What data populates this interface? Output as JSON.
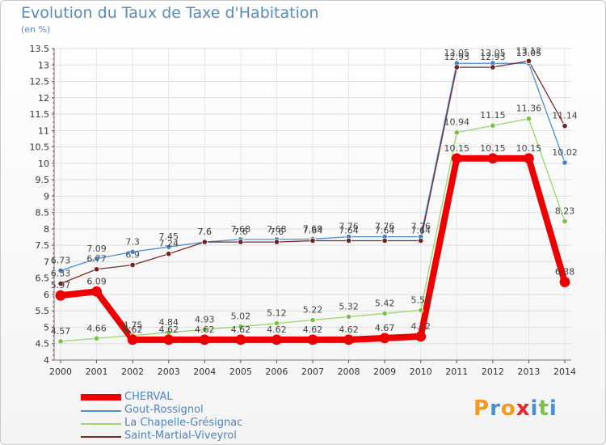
{
  "header": {
    "title": "Evolution du Taux de Taxe d'Habitation",
    "unit": "(en %)"
  },
  "logo": {
    "text": "Proxiti",
    "colors": [
      "#f39a1e",
      "#4a8fd0",
      "#f39a1e",
      "#e6282d",
      "#4a8fd0",
      "#7cc242",
      "#4a8fd0"
    ]
  },
  "chart_data": {
    "type": "line",
    "x": [
      "2000",
      "2001",
      "2002",
      "2003",
      "2004",
      "2005",
      "2006",
      "2007",
      "2008",
      "2009",
      "2010",
      "2011",
      "2012",
      "2013",
      "2014"
    ],
    "ylim": [
      4,
      13.5
    ],
    "yticks": [
      "4",
      "4.5",
      "5",
      "5.5",
      "6",
      "6.5",
      "7",
      "7.5",
      "8",
      "8.5",
      "9",
      "9.5",
      "10",
      "10.5",
      "11",
      "11.5",
      "12",
      "12.5",
      "13",
      "13.5"
    ],
    "grid": true,
    "legend_position": "bottom-left",
    "series": [
      {
        "name": "Gout-Rossignol",
        "color": "#4a8fd0",
        "point_color": "#3f82c8",
        "width": 1.3,
        "values": [
          6.73,
          7.09,
          7.3,
          7.45,
          7.6,
          7.68,
          7.68,
          7.69,
          7.76,
          7.76,
          7.76,
          13.05,
          13.05,
          13.05,
          10.02
        ],
        "labels": [
          "6.73",
          "7.09",
          "7.3",
          "7.45",
          "7.6",
          "7.68",
          "7.68",
          "7.69",
          "7.76",
          "7.76",
          "7.76",
          "13.05",
          "13.05",
          "13.05",
          "10.02"
        ]
      },
      {
        "name": "Saint-Martial-Viveyrol",
        "color": "#7a2c2c",
        "point_color": "#6e2222",
        "width": 1.3,
        "values": [
          6.33,
          6.77,
          6.9,
          7.24,
          7.6,
          7.6,
          7.6,
          7.64,
          7.64,
          7.64,
          7.64,
          12.93,
          12.93,
          13.12,
          11.14
        ],
        "labels": [
          "6.33",
          "6.77",
          "6.9",
          "7.24",
          "7.6",
          "7.6",
          "7.6",
          "7.64",
          "7.64",
          "7.64",
          "7.64",
          "12.93",
          "12.93",
          "13.12",
          "11.14"
        ]
      },
      {
        "name": "La Chapelle-Grésignac",
        "color": "#96d86a",
        "point_color": "#7cc242",
        "width": 1.3,
        "values": [
          4.57,
          4.66,
          4.75,
          4.84,
          4.93,
          5.02,
          5.12,
          5.22,
          5.32,
          5.42,
          5.52,
          10.94,
          11.15,
          11.36,
          8.23
        ],
        "labels": [
          "4.57",
          "4.66",
          "4.75",
          "4.84",
          "4.93",
          "5.02",
          "5.12",
          "5.22",
          "5.32",
          "5.42",
          "5.52",
          "10.94",
          "11.15",
          "11.36",
          "8.23"
        ]
      },
      {
        "name": "CHERVAL",
        "color": "#ee0000",
        "point_color": "#ee0000",
        "width": 8,
        "values": [
          5.97,
          6.09,
          4.62,
          4.62,
          4.62,
          4.62,
          4.62,
          4.62,
          4.62,
          4.67,
          4.72,
          10.15,
          10.15,
          10.15,
          6.38
        ],
        "labels": [
          "5.97",
          "6.09",
          "4.62",
          "4.62",
          "4.62",
          "4.62",
          "4.62",
          "4.62",
          "4.62",
          "4.67",
          "4.72",
          "10.15",
          "10.15",
          "10.15",
          "6.38"
        ]
      }
    ],
    "legend": [
      "CHERVAL",
      "Gout-Rossignol",
      "La Chapelle-Grésignac",
      "Saint-Martial-Viveyrol"
    ]
  }
}
